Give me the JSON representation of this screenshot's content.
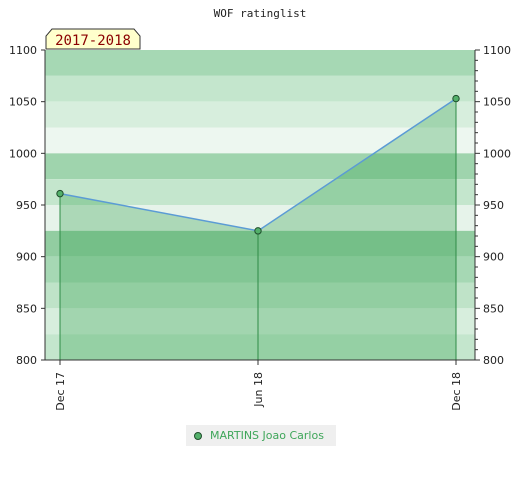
{
  "chart_data": {
    "type": "area",
    "title": "WOF ratinglist",
    "period_badge": "2017-2018",
    "xlabel": "",
    "ylabel": "",
    "x": [
      "Dec 17",
      "Jun 18",
      "Dec 18"
    ],
    "ylim": [
      800,
      1100
    ],
    "yticks": [
      "800",
      "850",
      "900",
      "950",
      "1000",
      "1050",
      "1100"
    ],
    "yticks_right": [
      "800",
      "850",
      "900",
      "950",
      "1000",
      "1050",
      "1100"
    ],
    "grid": false,
    "legend_position": "bottom-center",
    "series": [
      {
        "name": "MARTINS Joao Carlos",
        "values": [
          961,
          925,
          1053
        ]
      }
    ]
  },
  "colors": {
    "line": "#5b9bd5",
    "area": "#3fa65a",
    "marker_fill": "#53b06a",
    "legend_text": "#3fa65a",
    "badge_fill": "#ffffcc",
    "badge_text": "#8b0000",
    "band_strong": "#8fcca0",
    "band_light": "#dcefe2"
  }
}
